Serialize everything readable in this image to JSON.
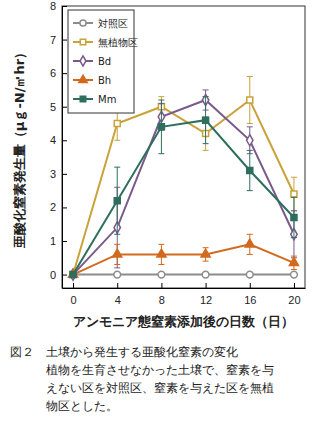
{
  "chart_data": {
    "type": "line",
    "title": "図２　土壌から発生する亜酸化窒素の変化",
    "subtitle": [
      "植物を生育させなかった土壌で、窒素を与",
      "えない区を対照区、窒素を与えた区を無植",
      "物区とした。"
    ],
    "x_label": "アンモニア態窒素添加後の日数（日）",
    "y_label": "亜酸化窒素発生量（μｇ-N/㎡hr）",
    "x": [
      0,
      4,
      8,
      12,
      16,
      20
    ],
    "xlim": [
      -1,
      21
    ],
    "xticks": [
      0,
      4,
      8,
      12,
      16,
      20
    ],
    "ylim": [
      -0.4,
      8
    ],
    "yticks": [
      0,
      1,
      2,
      3,
      4,
      5,
      6,
      7,
      8
    ],
    "grid": false,
    "legend": "upper left",
    "series": [
      {
        "name": "対照区",
        "color": "#8c8c8c",
        "marker": "circle-open",
        "values": [
          0,
          0,
          0,
          0,
          0,
          0
        ],
        "errors": [
          0,
          0,
          0,
          0,
          0,
          0
        ]
      },
      {
        "name": "無植物区",
        "color": "#c9a23a",
        "marker": "square-open",
        "values": [
          0,
          4.5,
          5.0,
          4.2,
          5.2,
          2.4
        ],
        "errors": [
          0,
          0.5,
          0.3,
          0.5,
          0.7,
          0.5
        ]
      },
      {
        "name": "Bd",
        "color": "#7a5a8a",
        "marker": "diamond-open",
        "values": [
          0,
          1.4,
          4.7,
          5.2,
          4.0,
          1.2
        ],
        "errors": [
          0,
          1.2,
          0.4,
          0.3,
          0.4,
          0.7
        ]
      },
      {
        "name": "Bh",
        "color": "#d2691e",
        "marker": "triangle",
        "values": [
          0,
          0.6,
          0.6,
          0.6,
          0.9,
          0.35
        ],
        "errors": [
          0,
          0.3,
          0.3,
          0.2,
          0.3,
          0.2
        ]
      },
      {
        "name": "Mm",
        "color": "#2e6e5e",
        "marker": "square",
        "values": [
          0,
          2.2,
          4.4,
          4.6,
          3.1,
          1.7
        ],
        "errors": [
          0,
          1.0,
          0.8,
          0.7,
          0.6,
          0.6
        ]
      }
    ]
  }
}
